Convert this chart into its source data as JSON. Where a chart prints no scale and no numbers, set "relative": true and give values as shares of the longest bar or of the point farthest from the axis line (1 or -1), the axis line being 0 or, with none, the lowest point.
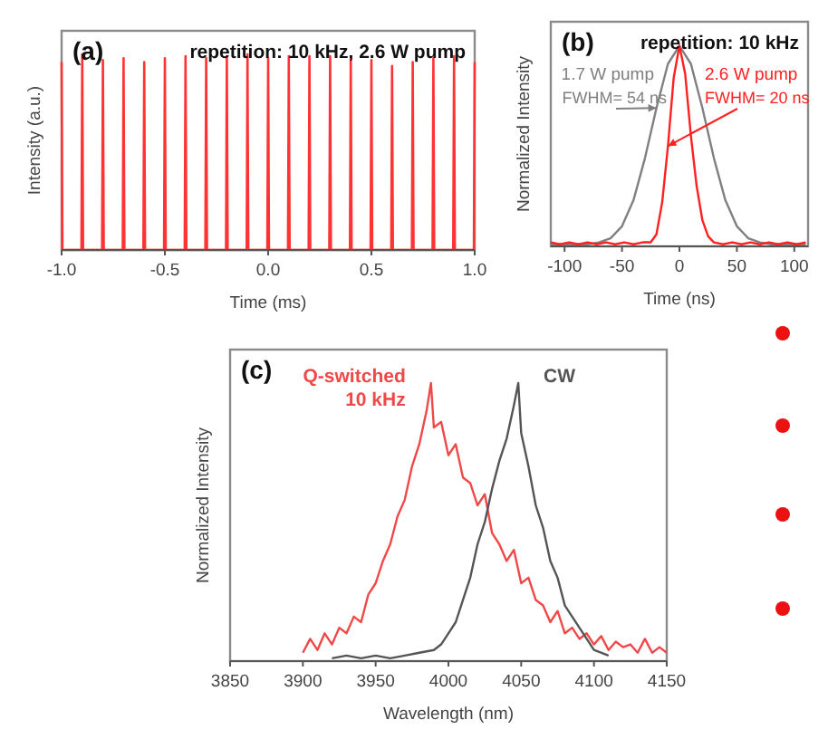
{
  "chart_data": [
    {
      "type": "line",
      "title": "repetition: 10 kHz, 2.6 W pump",
      "xlabel": "Time (ms)",
      "ylabel": "Intensity (a.u.)",
      "annotations": [
        "(a)"
      ],
      "relative": true,
      "xlim": [
        -1,
        1
      ],
      "xticks": [
        {
          "value": -1,
          "label": "-1.0"
        },
        -0.5,
        {
          "value": 0,
          "label": "0.0"
        },
        0.5,
        {
          "value": 1,
          "label": "1.0"
        }
      ],
      "series": [
        {
          "color": "#ff3333",
          "x": [
            -1,
            -0.996,
            -0.904,
            -0.9,
            -0.896,
            -0.804,
            -0.8,
            -0.796,
            -0.704,
            -0.7,
            -0.696,
            -0.604,
            -0.6,
            -0.596,
            -0.504,
            -0.5,
            -0.496,
            -0.404,
            -0.4,
            -0.396,
            -0.304,
            -0.3,
            -0.296,
            -0.204,
            -0.2,
            -0.196,
            -0.104,
            -0.1,
            -0.096,
            -0.004,
            0,
            0.004,
            0.096,
            0.1,
            0.104,
            0.196,
            0.2,
            0.204,
            0.296,
            0.3,
            0.304,
            0.396,
            0.4,
            0.404,
            0.496,
            0.5,
            0.504,
            0.596,
            0.6,
            0.604,
            0.696,
            0.7,
            0.704,
            0.796,
            0.8,
            0.804,
            0.896,
            0.9,
            0.904,
            0.996,
            1
          ],
          "values": [
            0.96,
            0,
            0,
            1.0,
            0,
            0,
            0.97,
            0,
            0,
            0.98,
            0,
            0,
            0.96,
            0,
            0,
            0.98,
            0,
            0,
            0.99,
            0,
            0,
            0.98,
            0,
            0,
            0.99,
            0,
            0,
            1.0,
            0,
            0,
            0.98,
            0,
            0,
            0.99,
            0,
            0,
            0.99,
            0,
            0,
            0.99,
            0,
            0,
            0.98,
            0,
            0,
            0.97,
            0,
            0,
            0.94,
            0,
            0,
            0.96,
            0,
            0,
            0.98,
            0,
            0,
            0.99,
            0,
            0,
            0.96
          ]
        }
      ]
    },
    {
      "type": "line",
      "title": "repetition: 10 kHz",
      "xlabel": "Time (ns)",
      "ylabel": "Normalized Intensity",
      "annotations": [
        "(b)",
        {
          "text": "FWHM= 54 ns",
          "x": -20,
          "y": 0.69
        },
        {
          "text": "FWHM= 20 ns",
          "x": -10,
          "y": 0.5
        }
      ],
      "relative": true,
      "xlim": [
        -112,
        112
      ],
      "xticks": [
        -100,
        -50,
        0,
        50,
        100
      ],
      "series": [
        {
          "name": "1.7 W pump",
          "color": "#808080",
          "x": [
            -112,
            -90,
            -80,
            -70,
            -60,
            -50,
            -40,
            -30,
            -20,
            -10,
            0,
            10,
            20,
            30,
            40,
            50,
            60,
            70,
            80,
            110
          ],
          "values": [
            0.01,
            0.01,
            0.01,
            0.02,
            0.04,
            0.1,
            0.23,
            0.44,
            0.69,
            0.91,
            1,
            0.91,
            0.69,
            0.44,
            0.23,
            0.1,
            0.04,
            0.02,
            0.01,
            0.01
          ]
        },
        {
          "name": "2.6 W pump",
          "color": "#ff2020",
          "x": [
            -112,
            -104,
            -96,
            -88,
            -80,
            -72,
            -64,
            -56,
            -48,
            -40,
            -32,
            -25,
            -20,
            -15,
            -10,
            -5,
            0,
            5,
            10,
            15,
            20,
            25,
            30,
            38,
            46,
            54,
            62,
            70,
            78,
            86,
            94,
            102,
            110
          ],
          "values": [
            0.02,
            0.01,
            0.02,
            0.01,
            0.02,
            0.01,
            0.02,
            0.01,
            0.02,
            0.01,
            0.02,
            0.02,
            0.06,
            0.22,
            0.5,
            0.84,
            1,
            0.86,
            0.55,
            0.3,
            0.13,
            0.05,
            0.02,
            0.01,
            0.02,
            0.01,
            0.02,
            0.01,
            0.02,
            0.01,
            0.02,
            0.01,
            0.02
          ]
        }
      ]
    },
    {
      "type": "line",
      "xlabel": "Wavelength (nm)",
      "ylabel": "Normalized Intensity",
      "annotations": [
        "(c)"
      ],
      "relative": true,
      "xlim": [
        3850,
        4150
      ],
      "xticks": [
        3850,
        3900,
        3950,
        4000,
        4050,
        4100,
        4150
      ],
      "series": [
        {
          "name": "Q-switched\n10 kHz",
          "color": "#f04848",
          "x": [
            3900,
            3905,
            3910,
            3915,
            3920,
            3925,
            3930,
            3935,
            3940,
            3945,
            3950,
            3955,
            3960,
            3965,
            3970,
            3975,
            3980,
            3985,
            3988,
            3990,
            3995,
            4000,
            4005,
            4010,
            4015,
            4020,
            4025,
            4030,
            4035,
            4040,
            4045,
            4050,
            4055,
            4060,
            4065,
            4070,
            4075,
            4080,
            4085,
            4090,
            4095,
            4100,
            4105,
            4110,
            4115,
            4120,
            4125,
            4130,
            4135,
            4140,
            4145,
            4150
          ],
          "values": [
            0.03,
            0.08,
            0.04,
            0.1,
            0.06,
            0.12,
            0.1,
            0.16,
            0.14,
            0.24,
            0.28,
            0.36,
            0.42,
            0.52,
            0.58,
            0.7,
            0.78,
            0.9,
            1.0,
            0.84,
            0.86,
            0.74,
            0.78,
            0.66,
            0.64,
            0.56,
            0.6,
            0.46,
            0.42,
            0.36,
            0.4,
            0.28,
            0.3,
            0.22,
            0.2,
            0.14,
            0.18,
            0.1,
            0.12,
            0.08,
            0.1,
            0.06,
            0.09,
            0.04,
            0.07,
            0.05,
            0.06,
            0.03,
            0.08,
            0.03,
            0.05,
            0.03
          ]
        },
        {
          "name": "CW",
          "color": "#555555",
          "x": [
            3920,
            3930,
            3940,
            3950,
            3960,
            3970,
            3980,
            3990,
            3995,
            4000,
            4005,
            4010,
            4015,
            4020,
            4025,
            4030,
            4035,
            4040,
            4045,
            4048,
            4050,
            4055,
            4060,
            4065,
            4070,
            4075,
            4080,
            4085,
            4090,
            4095,
            4100,
            4110
          ],
          "values": [
            0.01,
            0.02,
            0.01,
            0.02,
            0.01,
            0.02,
            0.03,
            0.04,
            0.06,
            0.1,
            0.14,
            0.22,
            0.3,
            0.42,
            0.5,
            0.62,
            0.72,
            0.8,
            0.92,
            1.0,
            0.82,
            0.7,
            0.56,
            0.48,
            0.36,
            0.3,
            0.2,
            0.16,
            0.12,
            0.08,
            0.04,
            0.02
          ]
        }
      ]
    }
  ]
}
